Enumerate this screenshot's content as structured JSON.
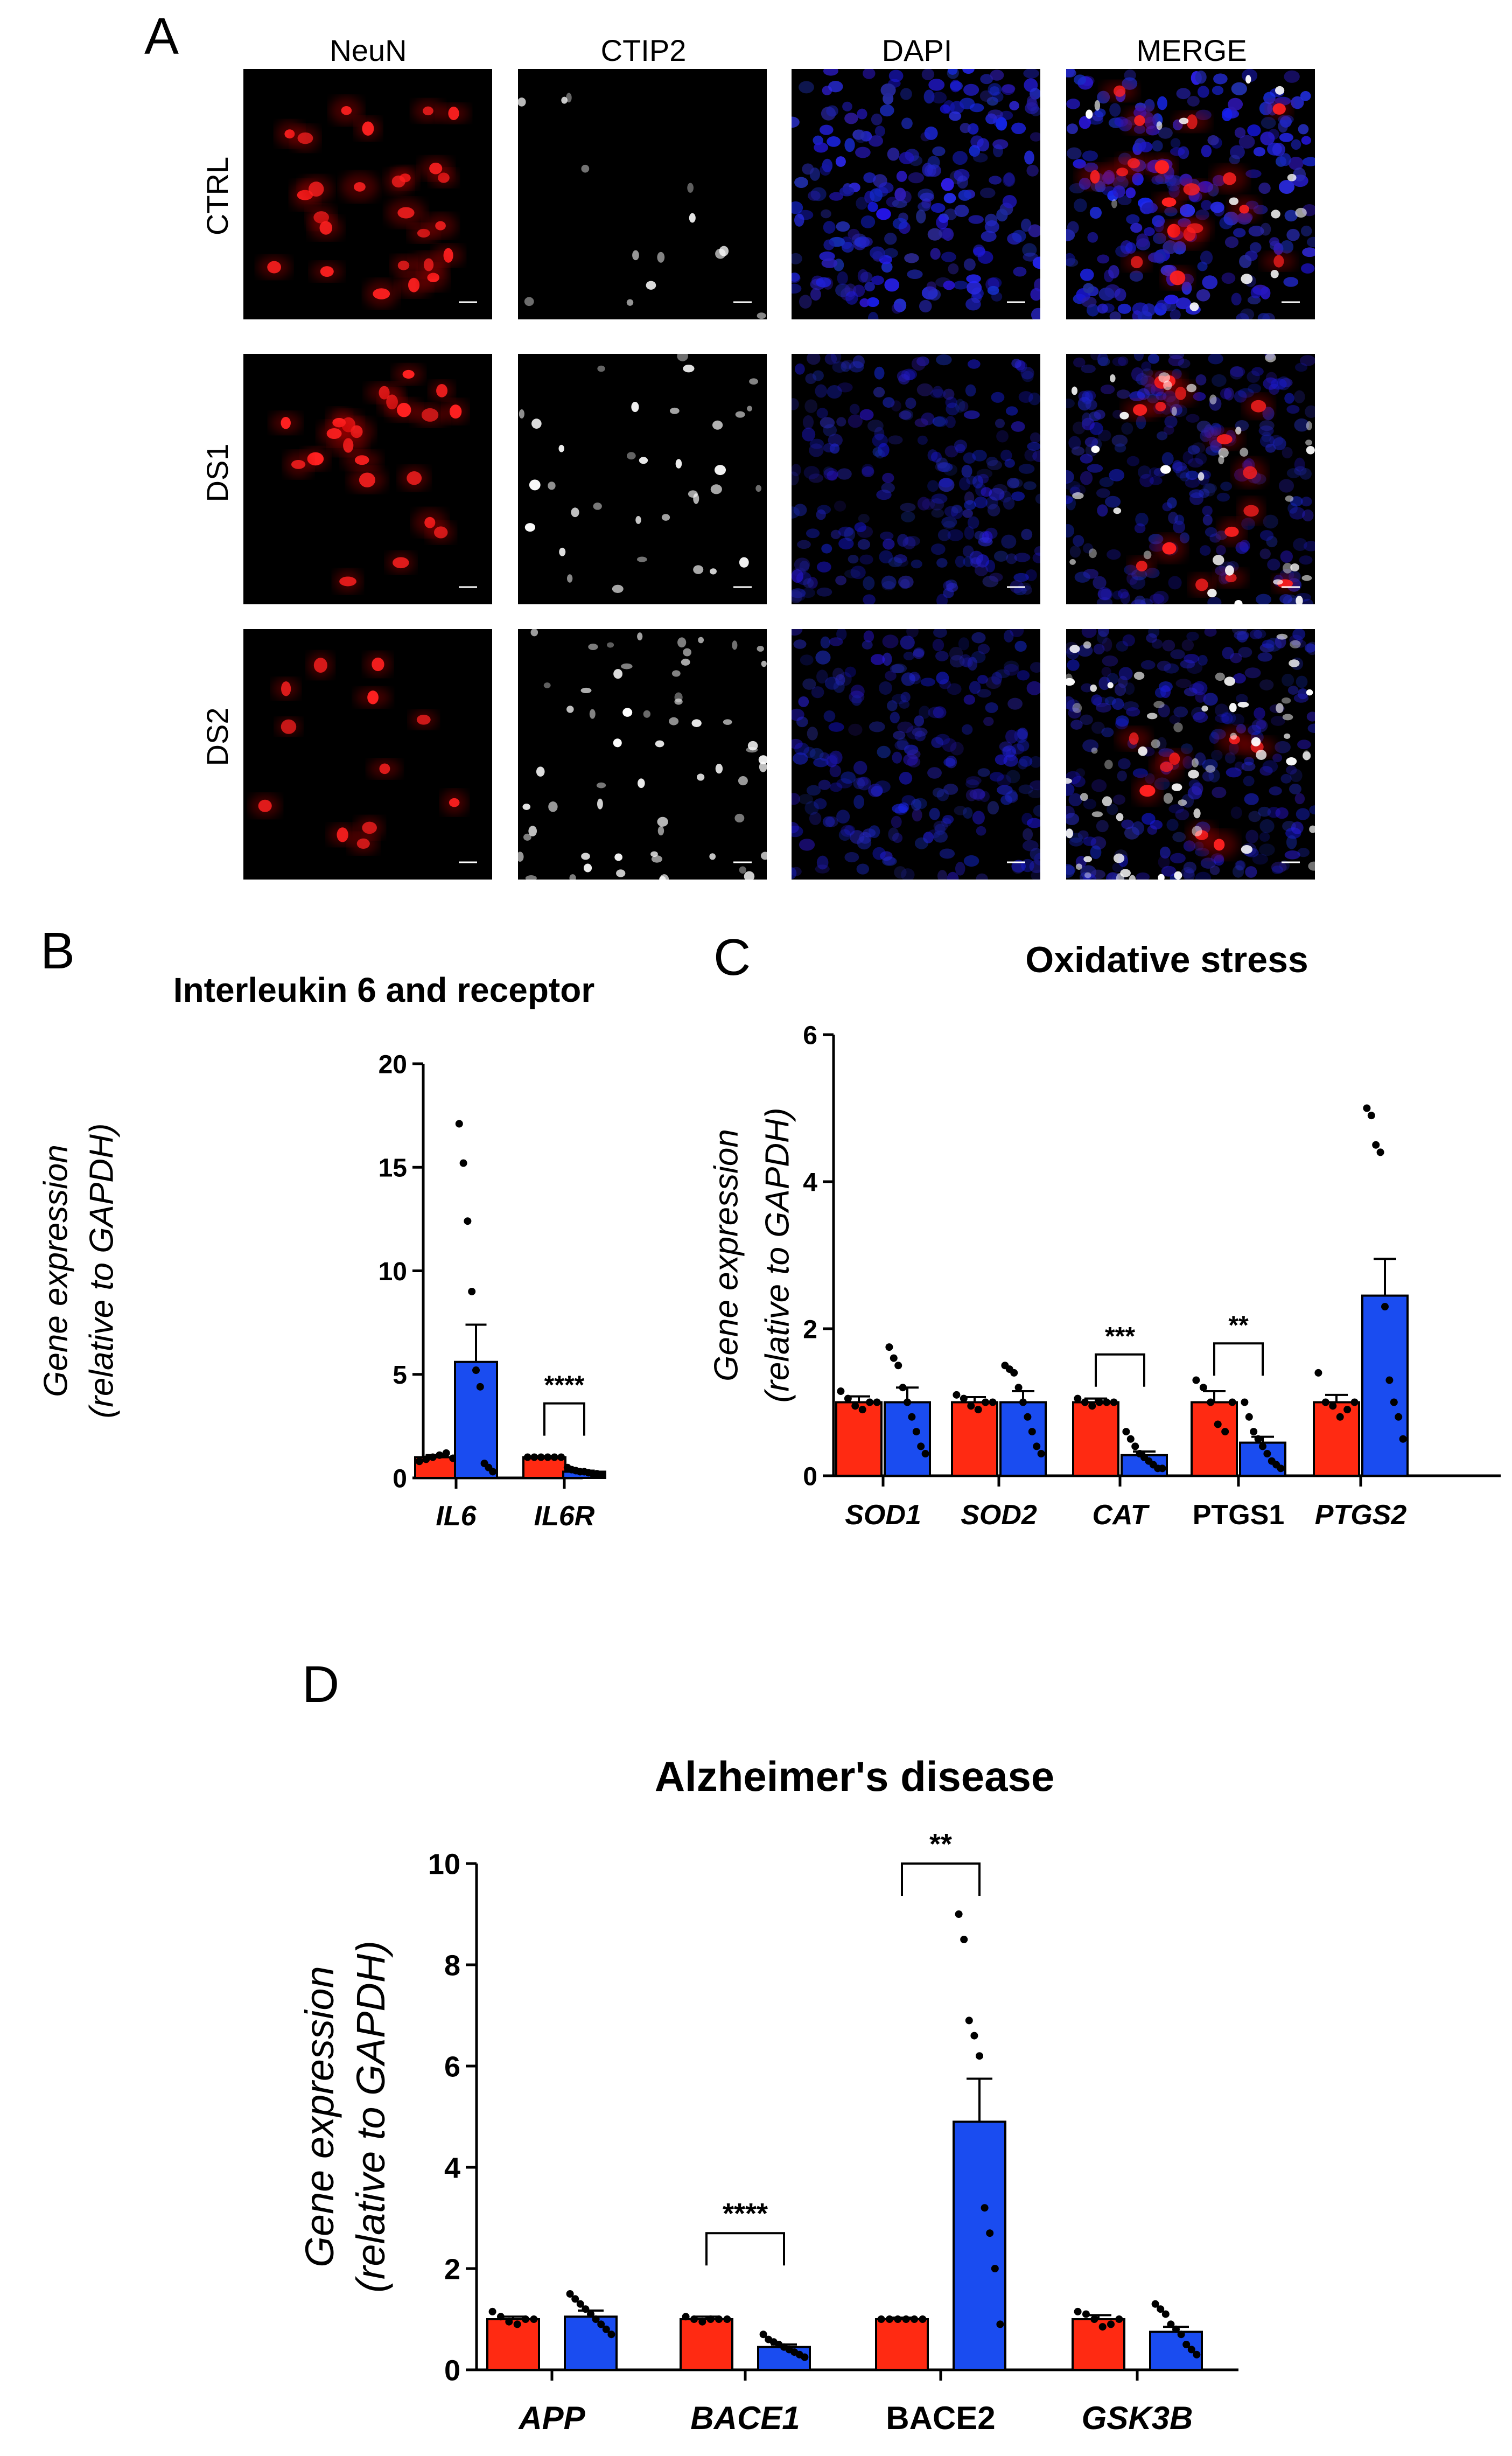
{
  "colors": {
    "ctrl": "#ff2a12",
    "ds": "#1a4cf0",
    "neun": "#ff1a1a",
    "ctip2": "#ffffff",
    "dapi": "#1a1aff"
  },
  "panel_a": {
    "letter": "A",
    "columns": [
      "NeuN",
      "CTIP2",
      "DAPI",
      "MERGE"
    ],
    "rows": [
      "CTRL",
      "DS1",
      "DS2"
    ]
  },
  "chart_data": [
    {
      "id": "B",
      "letter": "B",
      "type": "bar",
      "title": "Interleukin 6 and receptor",
      "ylabel_line1": "Gene expression",
      "ylabel_line2": "(relative to GAPDH)",
      "ylim": [
        0,
        20
      ],
      "yticks": [
        "0",
        "5",
        "10",
        "15",
        "20"
      ],
      "categories": [
        "IL6",
        "IL6R"
      ],
      "italic_categories": [
        true,
        true
      ],
      "series": [
        {
          "key": "ctrl",
          "values": [
            1.0,
            1.0
          ],
          "errors": [
            0.1,
            0.05
          ],
          "points": [
            [
              0.8,
              0.9,
              1.0,
              1.1,
              1.2,
              0.95
            ],
            [
              1.0,
              1.0,
              1.0,
              1.0,
              1.0,
              1.0
            ]
          ]
        },
        {
          "key": "ds",
          "values": [
            5.6,
            0.3
          ],
          "errors": [
            1.8,
            0.05
          ],
          "points": [
            [
              17.1,
              15.2,
              12.4,
              9.0,
              5.2,
              4.4,
              0.7,
              0.5,
              0.3
            ],
            [
              0.5,
              0.4,
              0.35,
              0.3,
              0.3,
              0.25,
              0.2,
              0.2,
              0.15
            ]
          ]
        }
      ],
      "significance": [
        {
          "category": 1,
          "label": "****",
          "y": 3.6
        }
      ]
    },
    {
      "id": "C",
      "letter": "C",
      "type": "bar",
      "title": "Oxidative stress",
      "ylabel_line1": "Gene expression",
      "ylabel_line2": "(relative to GAPDH)",
      "ylim": [
        0,
        6
      ],
      "yticks": [
        "0",
        "2",
        "4",
        "6"
      ],
      "categories": [
        "SOD1",
        "SOD2",
        "CAT",
        "PTGS1",
        "PTGS2"
      ],
      "italic_categories": [
        true,
        true,
        true,
        false,
        true
      ],
      "series": [
        {
          "key": "ctrl",
          "values": [
            1.0,
            1.0,
            1.0,
            1.0,
            1.0
          ],
          "errors": [
            0.08,
            0.07,
            0.05,
            0.15,
            0.1
          ],
          "points": [
            [
              1.15,
              1.05,
              0.95,
              0.9,
              1.0,
              1.0
            ],
            [
              1.1,
              1.05,
              0.95,
              0.9,
              1.0,
              1.0
            ],
            [
              1.05,
              1.0,
              0.95,
              1.0,
              1.0,
              1.0
            ],
            [
              1.3,
              1.2,
              1.0,
              0.7,
              0.6,
              1.0
            ],
            [
              1.4,
              1.0,
              0.95,
              0.8,
              0.9,
              1.0
            ]
          ]
        },
        {
          "key": "ds",
          "values": [
            1.0,
            1.0,
            0.28,
            0.45,
            2.45
          ],
          "errors": [
            0.2,
            0.15,
            0.05,
            0.08,
            0.5
          ],
          "points": [
            [
              1.75,
              1.6,
              1.5,
              1.2,
              1.0,
              0.8,
              0.6,
              0.4,
              0.3
            ],
            [
              1.5,
              1.45,
              1.4,
              1.2,
              1.0,
              0.8,
              0.6,
              0.4,
              0.3
            ],
            [
              0.6,
              0.5,
              0.4,
              0.3,
              0.25,
              0.2,
              0.15,
              0.1,
              0.1
            ],
            [
              1.0,
              0.8,
              0.6,
              0.5,
              0.4,
              0.3,
              0.2,
              0.15,
              0.1
            ],
            [
              5.0,
              4.9,
              4.5,
              4.4,
              2.3,
              1.3,
              1.0,
              0.8,
              0.5
            ]
          ]
        }
      ],
      "significance": [
        {
          "category": 2,
          "label": "***",
          "y": 1.65
        },
        {
          "category": 3,
          "label": "**",
          "y": 1.8
        }
      ]
    },
    {
      "id": "D",
      "letter": "D",
      "type": "bar",
      "title": "Alzheimer's disease",
      "ylabel_line1": "Gene expression",
      "ylabel_line2": "(relative to GAPDH)",
      "ylim": [
        0,
        10
      ],
      "yticks": [
        "0",
        "2",
        "4",
        "6",
        "8",
        "10"
      ],
      "categories": [
        "APP",
        "BACE1",
        "BACE2",
        "GSK3B"
      ],
      "italic_categories": [
        true,
        true,
        false,
        true
      ],
      "series": [
        {
          "key": "ctrl",
          "values": [
            1.0,
            1.0,
            1.0,
            1.0
          ],
          "errors": [
            0.05,
            0.05,
            0.03,
            0.08
          ],
          "points": [
            [
              1.15,
              1.05,
              0.95,
              0.9,
              1.0,
              1.0
            ],
            [
              1.05,
              1.0,
              0.95,
              1.0,
              1.0,
              1.0
            ],
            [
              1.0,
              1.0,
              1.0,
              1.0,
              1.0,
              1.0
            ],
            [
              1.15,
              1.1,
              1.0,
              0.85,
              0.9,
              1.0
            ]
          ]
        },
        {
          "key": "ds",
          "values": [
            1.05,
            0.45,
            4.9,
            0.75
          ],
          "errors": [
            0.12,
            0.05,
            0.85,
            0.1
          ],
          "points": [
            [
              1.5,
              1.4,
              1.3,
              1.2,
              1.1,
              1.0,
              0.9,
              0.8,
              0.7
            ],
            [
              0.7,
              0.6,
              0.55,
              0.5,
              0.45,
              0.4,
              0.35,
              0.3,
              0.25
            ],
            [
              9.0,
              8.5,
              6.9,
              6.6,
              6.2,
              3.2,
              2.7,
              2.0,
              0.9
            ],
            [
              1.3,
              1.2,
              1.1,
              0.9,
              0.8,
              0.7,
              0.5,
              0.4,
              0.3
            ]
          ]
        }
      ],
      "significance": [
        {
          "category": 1,
          "label": "****",
          "y": 2.7
        },
        {
          "category": 2,
          "label": "**",
          "y": 10.0
        }
      ]
    }
  ]
}
